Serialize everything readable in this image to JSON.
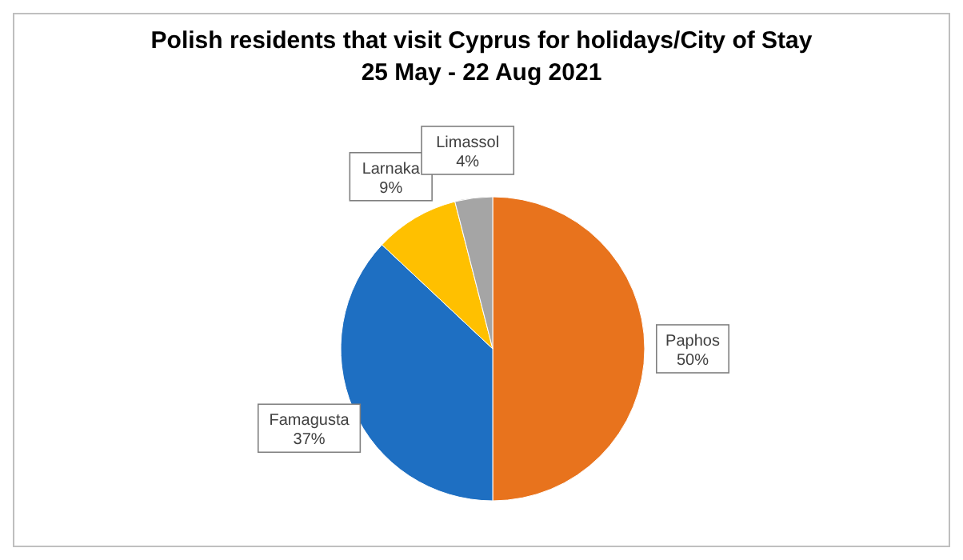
{
  "chart_data": {
    "type": "pie",
    "title": "Polish residents that visit Cyprus for holidays/City of Stay\n25 May - 22 Aug 2021",
    "categories": [
      "Paphos",
      "Famagusta",
      "Larnaka",
      "Limassol"
    ],
    "values": [
      50,
      37,
      9,
      4
    ],
    "value_labels": [
      "50%",
      "37%",
      "9%",
      "4%"
    ],
    "colors": [
      "#e8731d",
      "#1e6fc2",
      "#ffc000",
      "#a5a5a5"
    ]
  }
}
